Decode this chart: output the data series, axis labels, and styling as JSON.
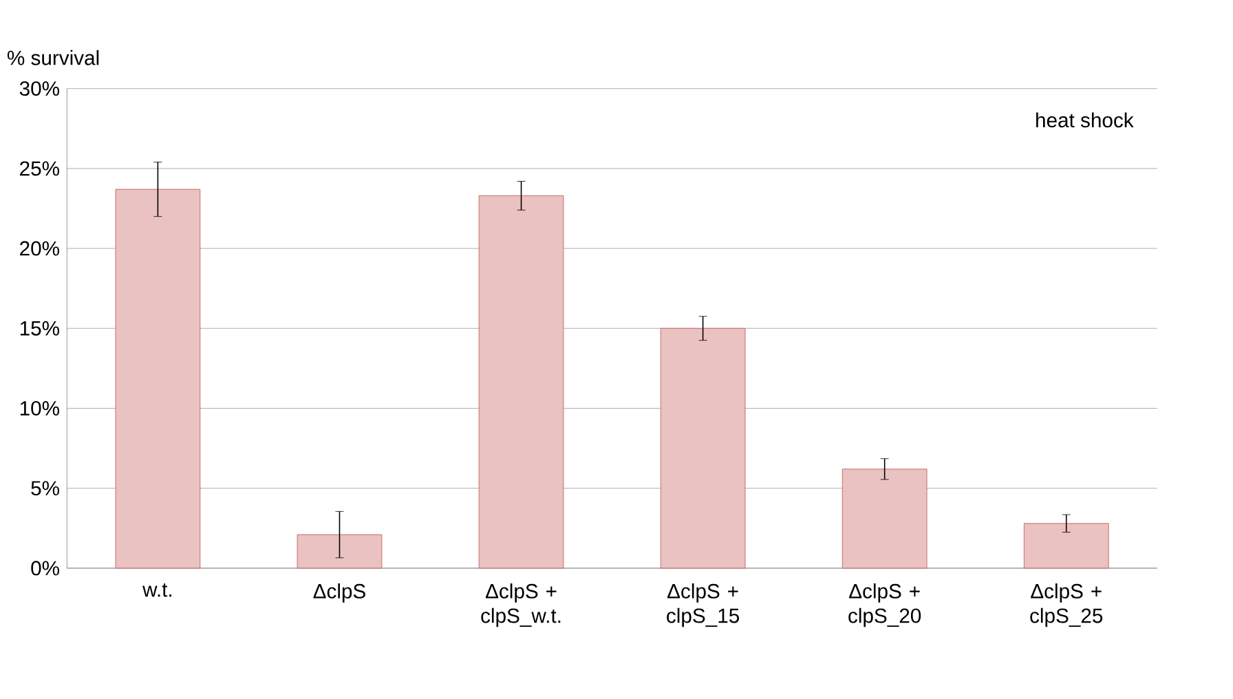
{
  "chart_data": {
    "type": "bar",
    "ylabel": "% survival",
    "categories": [
      "w.t.",
      "ΔclpS",
      "ΔclpS + clpS_w.t.",
      "ΔclpS + clpS_15",
      "ΔclpS + clpS_20",
      "ΔclpS + clpS_25"
    ],
    "values": [
      23.7,
      2.1,
      23.3,
      15.0,
      6.2,
      2.8
    ],
    "errors": [
      1.7,
      1.45,
      0.9,
      0.75,
      0.65,
      0.55
    ],
    "color": "#c0504d",
    "ylim": [
      0,
      30
    ],
    "yticks": [
      {
        "value": 0,
        "label": "0%"
      },
      {
        "value": 5,
        "label": "5%"
      },
      {
        "value": 10,
        "label": "10%"
      },
      {
        "value": 15,
        "label": "15%"
      },
      {
        "value": 20,
        "label": "20%"
      },
      {
        "value": 25,
        "label": "25%"
      },
      {
        "value": 30,
        "label": "30%"
      }
    ],
    "grid": "y",
    "annotations": [
      "heat shock"
    ]
  }
}
